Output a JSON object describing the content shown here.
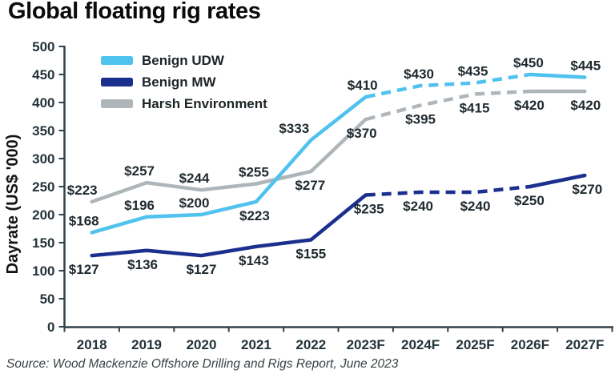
{
  "title": "Global floating rig rates",
  "source": "Source: Wood Mackenzie Offshore Drilling and Rigs Report, June 2023",
  "chart_data": {
    "type": "line",
    "title": "Global floating rig rates",
    "xlabel": "",
    "ylabel": "Dayrate (US$ '000)",
    "ylim": [
      0,
      500
    ],
    "ytick_step": 50,
    "yticks": [
      0,
      50,
      100,
      150,
      200,
      250,
      300,
      350,
      400,
      450,
      500
    ],
    "categories": [
      "2018",
      "2019",
      "2020",
      "2021",
      "2022",
      "2023F",
      "2024F",
      "2025F",
      "2026F",
      "2027F"
    ],
    "grid": false,
    "legend_position": "top-left-inside",
    "forecast_dash": {
      "from": "2023F",
      "to": "2026F",
      "from_index": 5,
      "to_index": 8
    },
    "series": [
      {
        "name": "Benign UDW",
        "color": "#4FC2EE",
        "values": [
          168,
          196,
          200,
          223,
          333,
          410,
          430,
          435,
          450,
          445
        ],
        "labels": [
          "$168",
          "$196",
          "$200",
          "$223",
          "$333",
          "$410",
          "$430",
          "$435",
          "$450",
          "$445"
        ],
        "label_pos": [
          "above",
          "above",
          "above",
          "below",
          "above",
          "above",
          "above",
          "above",
          "above",
          "above"
        ],
        "label_dx": [
          -10,
          -9,
          -9,
          -2,
          -21,
          -4,
          -2,
          -3,
          -2,
          1
        ]
      },
      {
        "name": "Benign MW",
        "color": "#1B2F8E",
        "values": [
          127,
          136,
          127,
          143,
          155,
          235,
          240,
          240,
          250,
          270
        ],
        "labels": [
          "$127",
          "$136",
          "$127",
          "$143",
          "$155",
          "$235",
          "$240",
          "$240",
          "$250",
          "$270"
        ],
        "label_pos": [
          "below",
          "below",
          "below",
          "below",
          "below",
          "below",
          "below",
          "below",
          "below",
          "below"
        ],
        "label_dx": [
          -10,
          -5,
          0,
          -3,
          0,
          4,
          -3,
          0,
          -1,
          3
        ]
      },
      {
        "name": "Harsh Environment",
        "color": "#AFB6BA",
        "values": [
          223,
          257,
          244,
          255,
          277,
          370,
          395,
          415,
          420,
          420
        ],
        "labels": [
          "$223",
          "$257",
          "$244",
          "$255",
          "$277",
          "$370",
          "$395",
          "$415",
          "$420",
          "$420"
        ],
        "label_pos": [
          "above",
          "above",
          "above",
          "above",
          "below",
          "below",
          "below",
          "below",
          "below",
          "below"
        ],
        "label_dx": [
          -12,
          -9,
          -9,
          -3,
          -1,
          -5,
          0,
          -1,
          -1,
          1
        ]
      }
    ]
  }
}
